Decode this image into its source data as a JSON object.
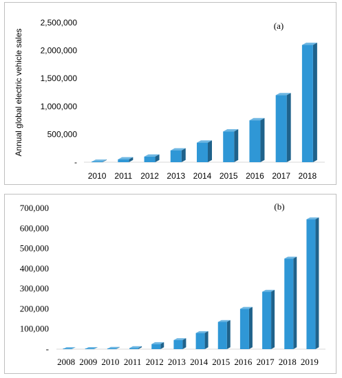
{
  "chart_data": [
    {
      "type": "bar",
      "panel_label": "(a)",
      "ylabel": "Annual global electric vehicle sales",
      "categories": [
        "2010",
        "2011",
        "2012",
        "2013",
        "2014",
        "2015",
        "2016",
        "2017",
        "2018"
      ],
      "values": [
        7000,
        50000,
        100000,
        210000,
        350000,
        550000,
        750000,
        1200000,
        2100000
      ],
      "ylim": [
        0,
        2500000
      ],
      "yticks": [
        "-",
        "500,000",
        "1,000,000",
        "1,500,000",
        "2,000,000",
        "2,500,000"
      ],
      "color": "#2f97d6",
      "grid": false
    },
    {
      "type": "bar",
      "panel_label": "(b)",
      "categories": [
        "2008",
        "2009",
        "2010",
        "2011",
        "2012",
        "2013",
        "2014",
        "2015",
        "2016",
        "2017",
        "2018",
        "2019"
      ],
      "values": [
        500,
        1000,
        1500,
        5000,
        25000,
        45000,
        80000,
        135000,
        200000,
        285000,
        450000,
        645000
      ],
      "ylim": [
        0,
        700000
      ],
      "yticks": [
        "-",
        "100,000",
        "200,000",
        "300,000",
        "400,000",
        "500,000",
        "600,000",
        "700,000"
      ],
      "color": "#2f97d6",
      "grid": false
    }
  ]
}
